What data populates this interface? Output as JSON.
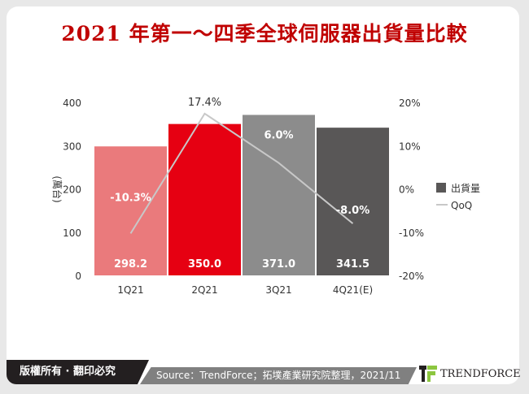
{
  "title": "2021 年第一～四季全球伺服器出貨量比較",
  "footer": {
    "copyright": "版權所有 · 翻印必究",
    "source": "Source：TrendForce；拓墣產業研究院整理，2021/11",
    "logo": "TRENDFORCE"
  },
  "colors": {
    "title": "#c00000",
    "bar_1": "#ea7a7c",
    "bar_2": "#e60012",
    "bar_3": "#8c8c8c",
    "bar_4": "#595757",
    "line": "#c8c8c8"
  },
  "chart_data": {
    "type": "bar+line",
    "categories": [
      "1Q21",
      "2Q21",
      "3Q21",
      "4Q21(E)"
    ],
    "series": [
      {
        "name": "出貨量",
        "type": "bar",
        "axis": "left",
        "values": [
          298.2,
          350.0,
          371.0,
          341.5
        ],
        "labels": [
          "298.2",
          "350.0",
          "371.0",
          "341.5"
        ]
      },
      {
        "name": "QoQ",
        "type": "line",
        "axis": "right",
        "values": [
          -10.3,
          17.4,
          6.0,
          -8.0
        ],
        "labels": [
          "-10.3%",
          "17.4%",
          "6.0%",
          "-8.0%"
        ]
      }
    ],
    "ylabel": "(萬台)",
    "ylim": [
      0,
      400
    ],
    "yticks": [
      "0",
      "100",
      "200",
      "300",
      "400"
    ],
    "y2lim": [
      -20,
      20
    ],
    "y2ticks": [
      "-20%",
      "-10%",
      "0%",
      "10%",
      "20%"
    ],
    "grid": false,
    "legend": "right"
  }
}
